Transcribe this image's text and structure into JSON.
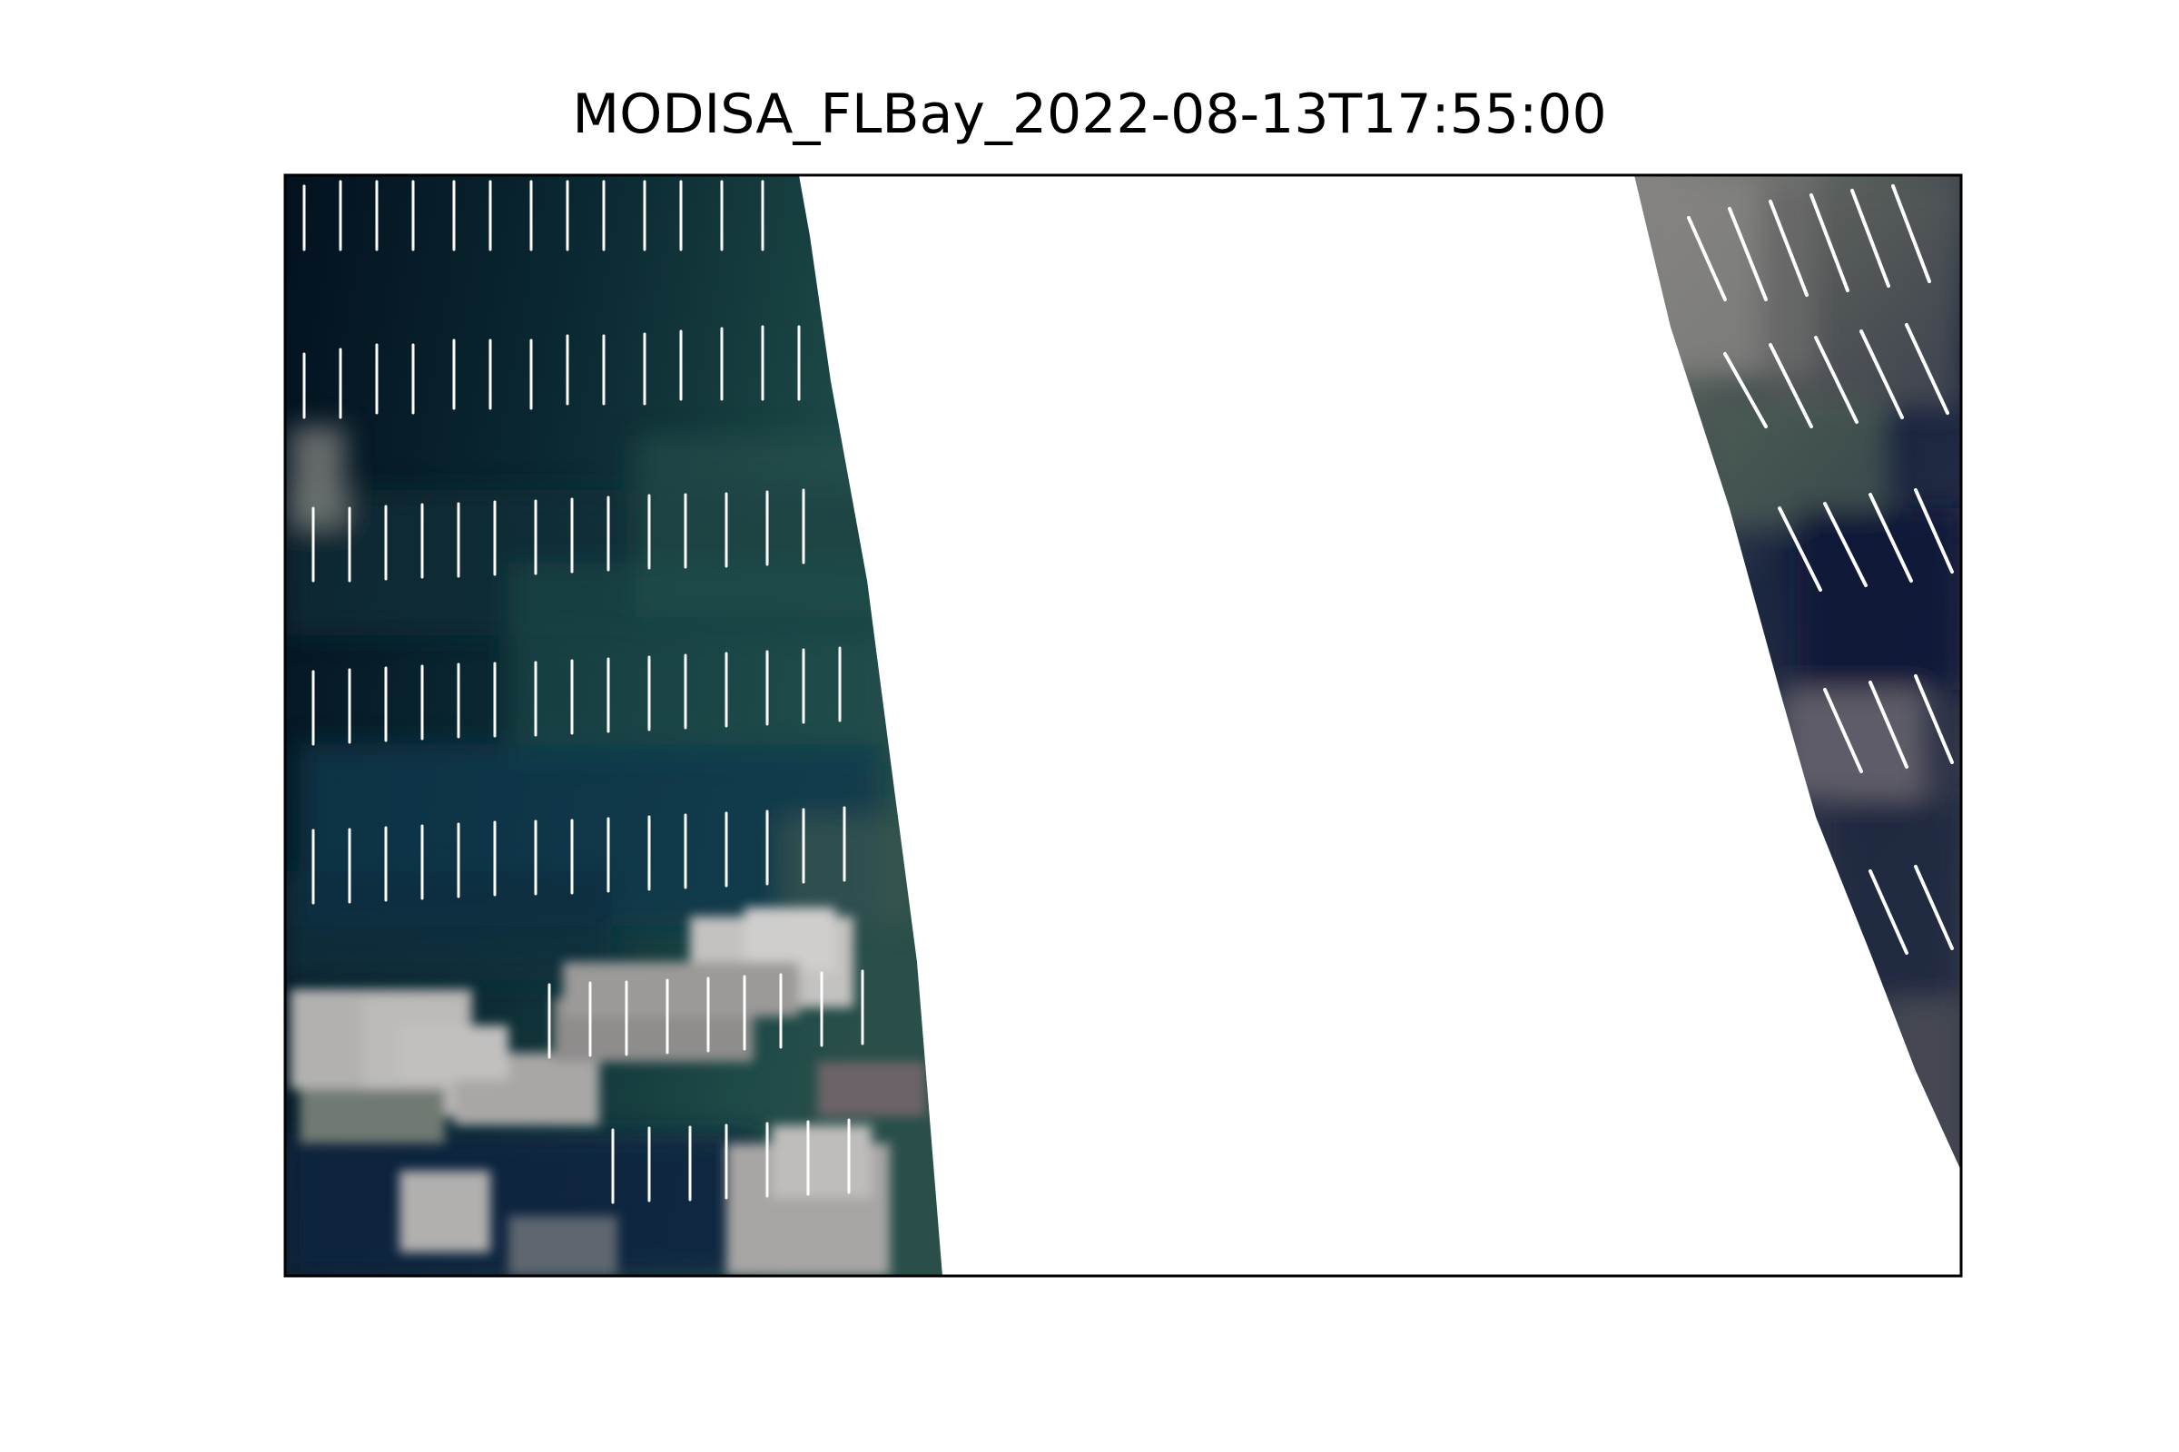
{
  "figure": {
    "title": "MODISA_FLBay_2022-08-13T17:55:00"
  },
  "image": {
    "description_type": "satellite true-color composite swath",
    "colors": {
      "ocean_deep": "#041424",
      "ocean_teal": "#1f4a4b",
      "ocean_blue": "#0c3a4e",
      "cloud_light": "#b9b7b6",
      "cloud_gray": "#7a7674",
      "night_navy": "#141d33",
      "no_data": "#ffffff",
      "frame": "#000000"
    }
  }
}
